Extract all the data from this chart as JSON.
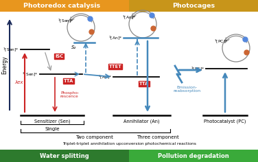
{
  "title_left": "Photoredox catalysis",
  "title_right": "Photocages",
  "header_left_color": "#e8961e",
  "header_right_color": "#c8951a",
  "green_left_color": "#2d7a2d",
  "green_right_color": "#3aaa3a",
  "green_bar_left": "Water splitting",
  "green_bar_right": "Pollution degradation",
  "bottom_text": "Triplet-triplet annihilation upconversion photochemical reactions",
  "energy_label": "Energy",
  "sen_label": "Sensitizer (Sen)",
  "an_label": "Annihilator (An)",
  "pc_label": "Photocatalyst (PC)",
  "single_label": "Single",
  "two_comp_label": "Two component",
  "three_comp_label": "Three component",
  "isc_label": "ISC",
  "ttet_label": "TTET",
  "tta_label": "TTA",
  "emission_label": "Emission-\nreabsorption",
  "phospho_label": "Phospho-\nrescence",
  "lambda_label": "λex",
  "s2_label": "S₂",
  "red_box_color": "#cc2222",
  "blue_color": "#4488bb",
  "dark_blue": "#223366",
  "navy": "#1a2a5a",
  "blue_dot": "#5588dd",
  "orange_dot": "#cc6633",
  "circle_gray": "#888888",
  "white": "#ffffff",
  "black": "#000000",
  "red": "#cc2222",
  "gray": "#999999"
}
